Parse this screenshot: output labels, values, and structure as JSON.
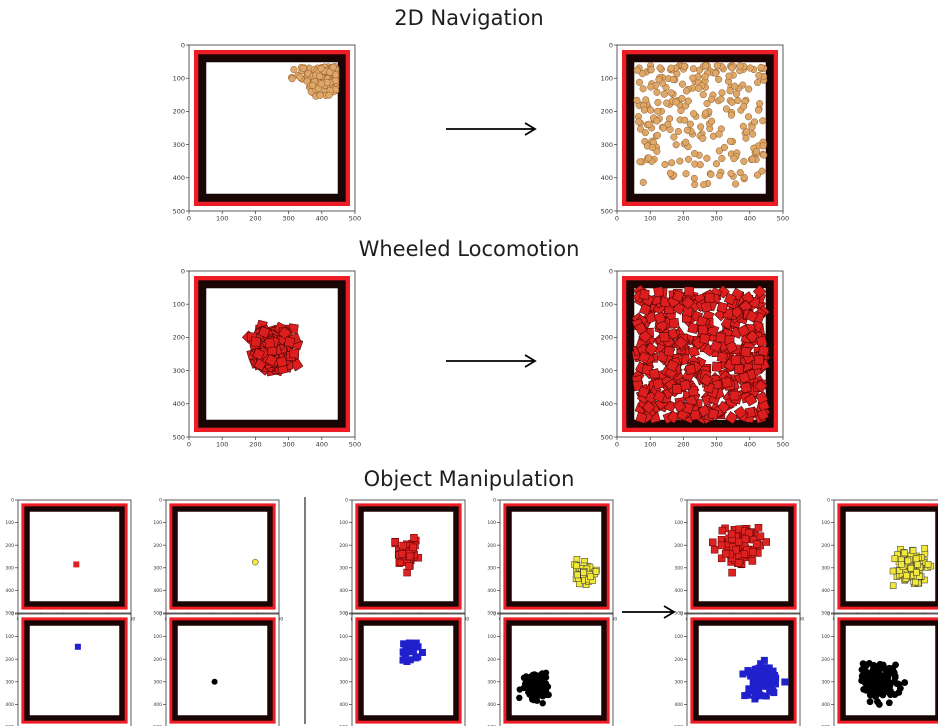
{
  "rows": [
    {
      "title": "2D Navigation"
    },
    {
      "title": "Wheeled Locomotion"
    },
    {
      "title": "Object Manipulation"
    }
  ],
  "axis_ticks": {
    "x": [
      "0",
      "100",
      "200",
      "300",
      "400",
      "500"
    ],
    "y": [
      "0",
      "100",
      "200",
      "300",
      "400",
      "500"
    ]
  },
  "colors": {
    "wall_red": "#ee1c24",
    "wall_black": "#1a0505",
    "navigation_agent": "#e0a868",
    "locomotion_agent": "#dd1e1e",
    "manip_red": "#dd2222",
    "manip_yellow": "#f2e83a",
    "manip_blue": "#2020cc",
    "manip_black": "#000000"
  },
  "icons": [
    "right-arrow-icon"
  ]
}
